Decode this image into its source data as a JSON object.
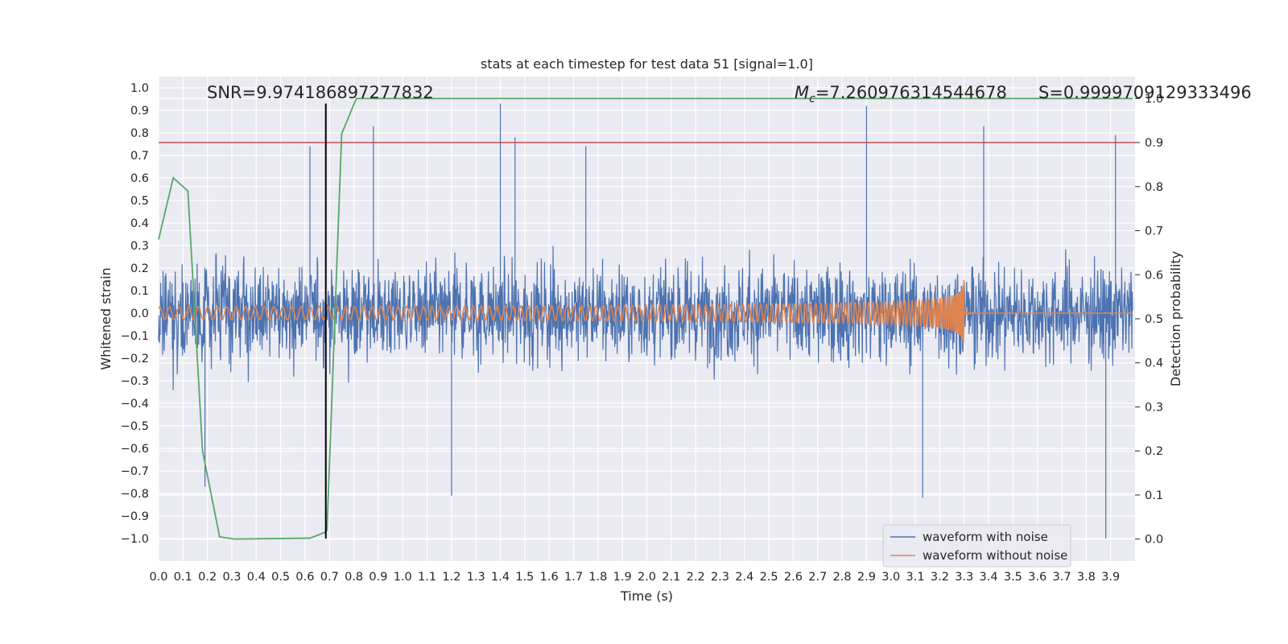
{
  "chart_data": {
    "type": "line",
    "title": "stats at each timestep for test data 51 [signal=1.0]",
    "xlabel": "Time (s)",
    "ylabel": "Whitened strain",
    "y2label": "Detection probability",
    "xlim": [
      0.0,
      4.0
    ],
    "ylim": [
      -1.1,
      1.05
    ],
    "y2lim": [
      -0.05,
      1.05
    ],
    "xticks": [
      "0.0",
      "0.1",
      "0.2",
      "0.3",
      "0.4",
      "0.5",
      "0.6",
      "0.7",
      "0.8",
      "0.9",
      "1.0",
      "1.1",
      "1.2",
      "1.3",
      "1.4",
      "1.5",
      "1.6",
      "1.7",
      "1.8",
      "1.9",
      "2.0",
      "2.1",
      "2.2",
      "2.3",
      "2.4",
      "2.5",
      "2.6",
      "2.7",
      "2.8",
      "2.9",
      "3.0",
      "3.1",
      "3.2",
      "3.3",
      "3.4",
      "3.5",
      "3.6",
      "3.7",
      "3.8",
      "3.9"
    ],
    "yticks": [
      "1.0",
      "0.9",
      "0.8",
      "0.7",
      "0.6",
      "0.5",
      "0.4",
      "0.3",
      "0.2",
      "0.1",
      "0.0",
      "−0.1",
      "−0.2",
      "−0.3",
      "−0.4",
      "−0.5",
      "−0.6",
      "−0.7",
      "−0.8",
      "−0.9",
      "−1.0"
    ],
    "y2ticks": [
      "1.0",
      "0.9",
      "0.8",
      "0.7",
      "0.6",
      "0.5",
      "0.4",
      "0.3",
      "0.2",
      "0.1",
      "0.0"
    ],
    "grid": true,
    "legend_position": "lower-right",
    "annotations": {
      "snr": "SNR=9.974186897277832",
      "mc_symbol": "M",
      "mc_sub": "c",
      "mc_value": "=7.260976314544678",
      "s": "S=0.9999709129333496"
    },
    "series": [
      {
        "name": "waveform with noise",
        "color": "#4c72b0",
        "axis": "left",
        "description": "noisy whitened strain, roughly within ±0.6 with peaks up to 0.93 and down to −1.0",
        "peaks": [
          [
            0.19,
            -0.77
          ],
          [
            0.62,
            0.74
          ],
          [
            0.88,
            0.83
          ],
          [
            1.2,
            -0.81
          ],
          [
            1.4,
            0.93
          ],
          [
            1.46,
            0.78
          ],
          [
            1.75,
            0.74
          ],
          [
            2.9,
            0.92
          ],
          [
            3.13,
            -0.82
          ],
          [
            3.38,
            0.83
          ],
          [
            3.88,
            -1.0
          ],
          [
            3.92,
            0.79
          ]
        ]
      },
      {
        "name": "waveform without noise",
        "color": "#dd8452",
        "axis": "left",
        "description": "chirp signal, amplitude ~0.03 growing to ~0.28 at merger near t=3.3 s, flat afterwards",
        "t_merger": 3.3
      },
      {
        "name": "detection probability",
        "color": "#55a868",
        "axis": "right",
        "x": [
          0.0,
          0.06,
          0.12,
          0.18,
          0.25,
          0.31,
          0.62,
          0.68,
          0.69,
          0.75,
          0.81,
          3.99
        ],
        "values": [
          0.68,
          0.82,
          0.79,
          0.2,
          0.005,
          0.0,
          0.002,
          0.015,
          0.02,
          0.92,
          1.0,
          1.0
        ]
      }
    ],
    "threshold": {
      "value": 0.9,
      "axis": "right",
      "color": "#c44e52"
    },
    "marker_line": {
      "x": 0.685,
      "color": "#000000"
    }
  }
}
